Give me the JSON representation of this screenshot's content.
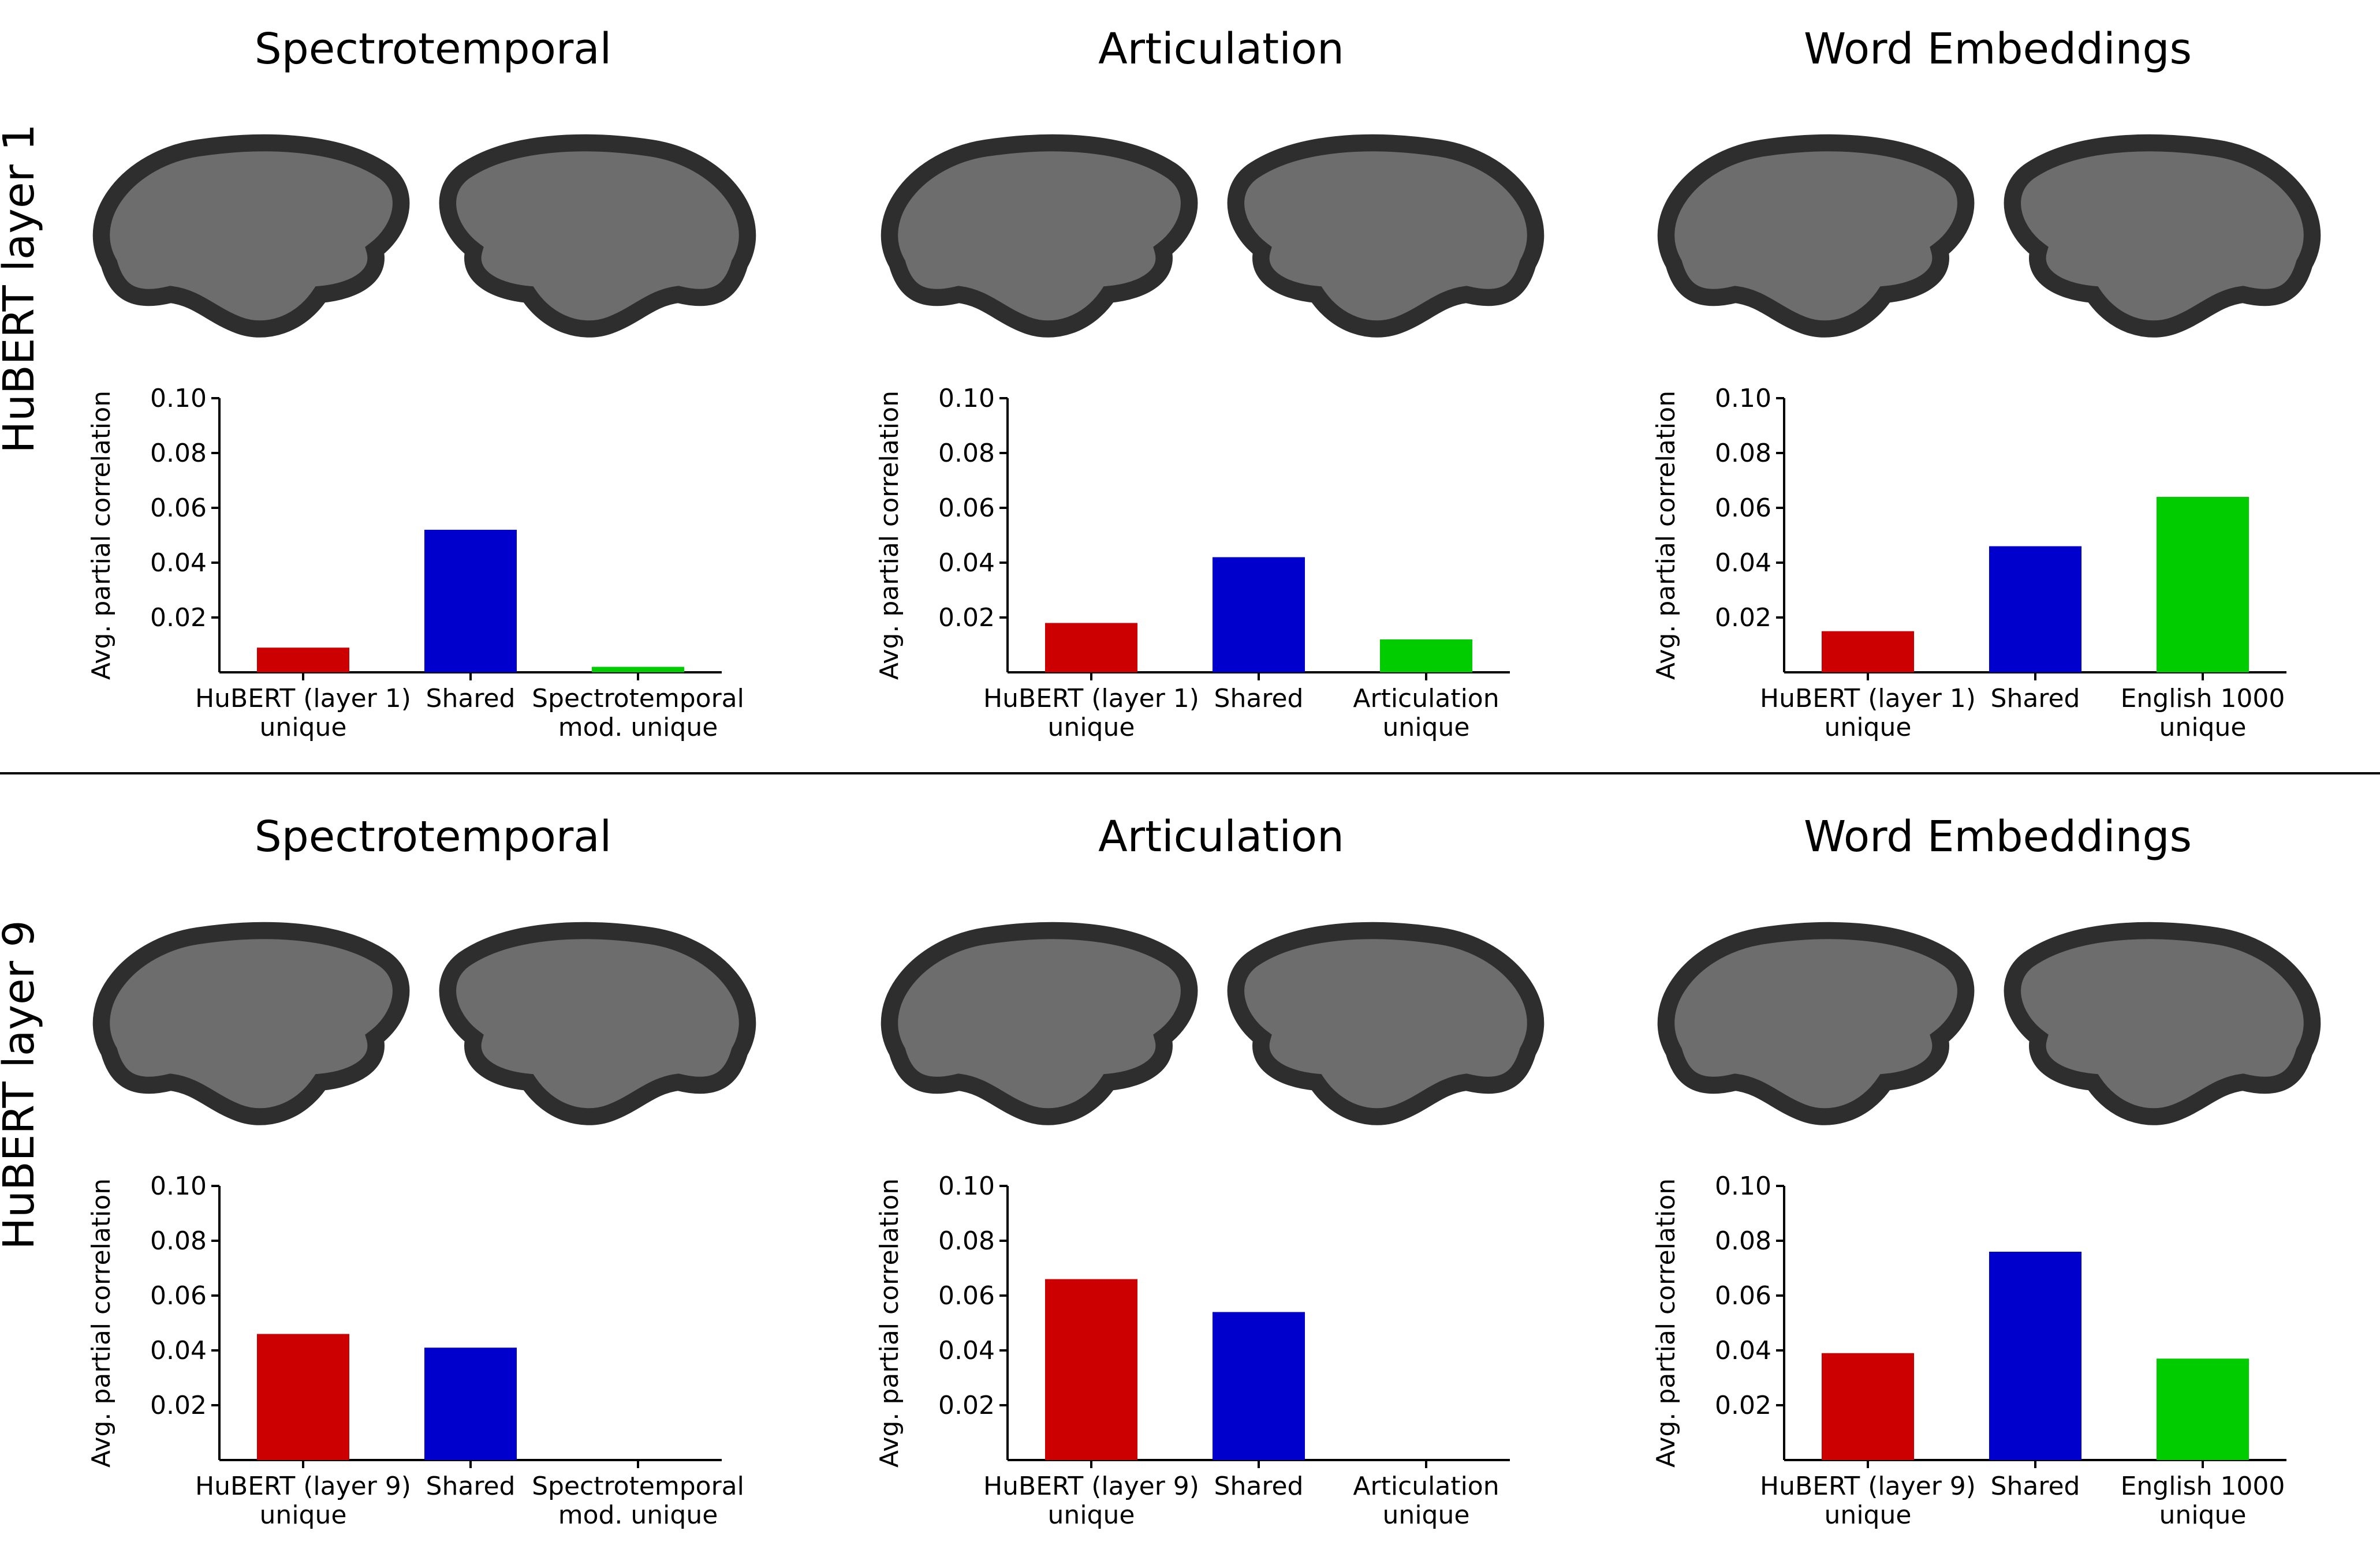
{
  "row_labels": [
    "HuBERT layer 1",
    "HuBERT layer 9"
  ],
  "ylabel": "Avg. partial correlation",
  "yticks": [
    "0.02",
    "0.04",
    "0.06",
    "0.08",
    "0.10"
  ],
  "colors": {
    "unique_hubert": "#cc0000",
    "shared": "#0000cc",
    "unique_feature": "#00cc00",
    "brain_base": "#6d6d6d",
    "divider": "#000000"
  },
  "chart_data": [
    {
      "type": "bar",
      "title": "Spectrotemporal",
      "ylabel": "Avg. partial correlation",
      "ylim": [
        0,
        0.1
      ],
      "categories": [
        "HuBERT (layer 1)\nunique",
        "Shared",
        "Spectrotemporal\nmod. unique"
      ],
      "values": [
        0.009,
        0.052,
        0.002
      ]
    },
    {
      "type": "bar",
      "title": "Articulation",
      "ylabel": "Avg. partial correlation",
      "ylim": [
        0,
        0.1
      ],
      "categories": [
        "HuBERT (layer 1)\nunique",
        "Shared",
        "Articulation\nunique"
      ],
      "values": [
        0.018,
        0.042,
        0.012
      ]
    },
    {
      "type": "bar",
      "title": "Word Embeddings",
      "ylabel": "Avg. partial correlation",
      "ylim": [
        0,
        0.1
      ],
      "categories": [
        "HuBERT (layer 1)\nunique",
        "Shared",
        "English 1000\nunique"
      ],
      "values": [
        0.015,
        0.046,
        0.064
      ]
    },
    {
      "type": "bar",
      "title": "Spectrotemporal",
      "ylabel": "Avg. partial correlation",
      "ylim": [
        0,
        0.1
      ],
      "categories": [
        "HuBERT (layer 9)\nunique",
        "Shared",
        "Spectrotemporal\nmod. unique"
      ],
      "values": [
        0.046,
        0.041,
        0.0
      ]
    },
    {
      "type": "bar",
      "title": "Articulation",
      "ylabel": "Avg. partial correlation",
      "ylim": [
        0,
        0.1
      ],
      "categories": [
        "HuBERT (layer 9)\nunique",
        "Shared",
        "Articulation\nunique"
      ],
      "values": [
        0.066,
        0.054,
        0.0
      ]
    },
    {
      "type": "bar",
      "title": "Word Embeddings",
      "ylabel": "Avg. partial correlation",
      "ylim": [
        0,
        0.1
      ],
      "categories": [
        "HuBERT (layer 9)\nunique",
        "Shared",
        "English 1000\nunique"
      ],
      "values": [
        0.039,
        0.076,
        0.037
      ]
    }
  ]
}
